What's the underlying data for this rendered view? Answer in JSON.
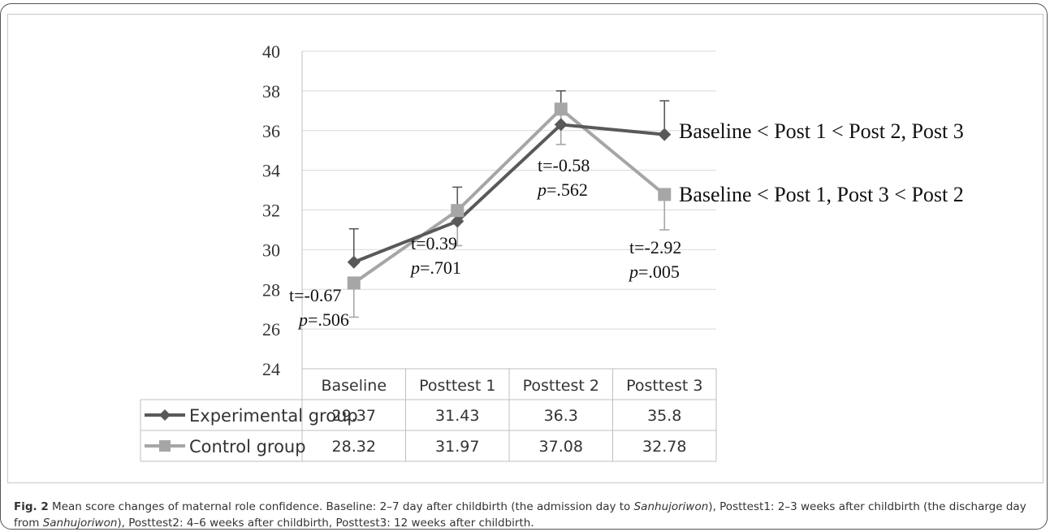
{
  "chart_data": {
    "type": "line",
    "categories": [
      "Baseline",
      "Posttest 1",
      "Posttest 2",
      "Posttest 3"
    ],
    "ylim": [
      24,
      40
    ],
    "yticks": [
      "24",
      "26",
      "28",
      "30",
      "32",
      "34",
      "36",
      "38",
      "40"
    ],
    "grid": true,
    "series": [
      {
        "name": "Experimental group",
        "values": [
          29.37,
          31.43,
          36.3,
          35.8
        ],
        "table_values": [
          "29.37",
          "31.43",
          "36.3",
          "35.8"
        ],
        "error_upper": [
          31.05,
          33.15,
          38.0,
          37.5
        ],
        "color": "#595959",
        "marker": "diamond"
      },
      {
        "name": "Control group",
        "values": [
          28.32,
          31.97,
          37.08,
          32.78
        ],
        "table_values": [
          "28.32",
          "31.97",
          "37.08",
          "32.78"
        ],
        "error_lower": [
          26.6,
          30.2,
          35.3,
          31.0
        ],
        "color": "#a6a6a6",
        "marker": "square"
      }
    ],
    "annotations": [
      {
        "t": "t=-0.67",
        "p": "=.506"
      },
      {
        "t": "t=0.39",
        "p": "=.701"
      },
      {
        "t": "t=-0.58",
        "p": "=.562"
      },
      {
        "t": "t=-2.92",
        "p": "=.005"
      }
    ],
    "p_symbol": "p",
    "series_comparisons": [
      "Baseline < Post 1 < Post 2, Post 3",
      "Baseline < Post 1, Post 3 < Post 2"
    ]
  },
  "caption": {
    "label": "Fig. 2",
    "parts": [
      " Mean score changes of maternal role confidence. Baseline: 2–7 day after childbirth (the admission day to ",
      "Sanhujoriwon",
      "), Posttest1: 2–3 weeks after childbirth (the discharge day from ",
      "Sanhujoriwon",
      "), Posttest2: 4–6 weeks after childbirth, Posttest3: 12 weeks after childbirth."
    ]
  }
}
